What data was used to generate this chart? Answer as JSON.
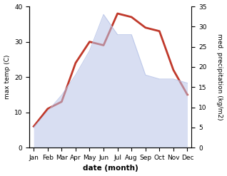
{
  "months": [
    "Jan",
    "Feb",
    "Mar",
    "Apr",
    "May",
    "Jun",
    "Jul",
    "Aug",
    "Sep",
    "Oct",
    "Nov",
    "Dec"
  ],
  "temp": [
    6,
    11,
    13,
    24,
    30,
    29,
    38,
    37,
    34,
    33,
    22,
    15
  ],
  "precip": [
    5,
    9,
    13,
    18,
    24,
    33,
    28,
    28,
    18,
    17,
    17,
    16
  ],
  "temp_ylim": [
    0,
    40
  ],
  "precip_ylim": [
    0,
    35
  ],
  "temp_color": "#c0392b",
  "precip_fill_color": "#b8c4e8",
  "xlabel": "date (month)",
  "ylabel_left": "max temp (C)",
  "ylabel_right": "med. precipitation (kg/m2)",
  "background_color": "#ffffff",
  "temp_linewidth": 2.0,
  "yticks_left": [
    0,
    10,
    20,
    30,
    40
  ],
  "yticks_right": [
    0,
    5,
    10,
    15,
    20,
    25,
    30,
    35
  ]
}
